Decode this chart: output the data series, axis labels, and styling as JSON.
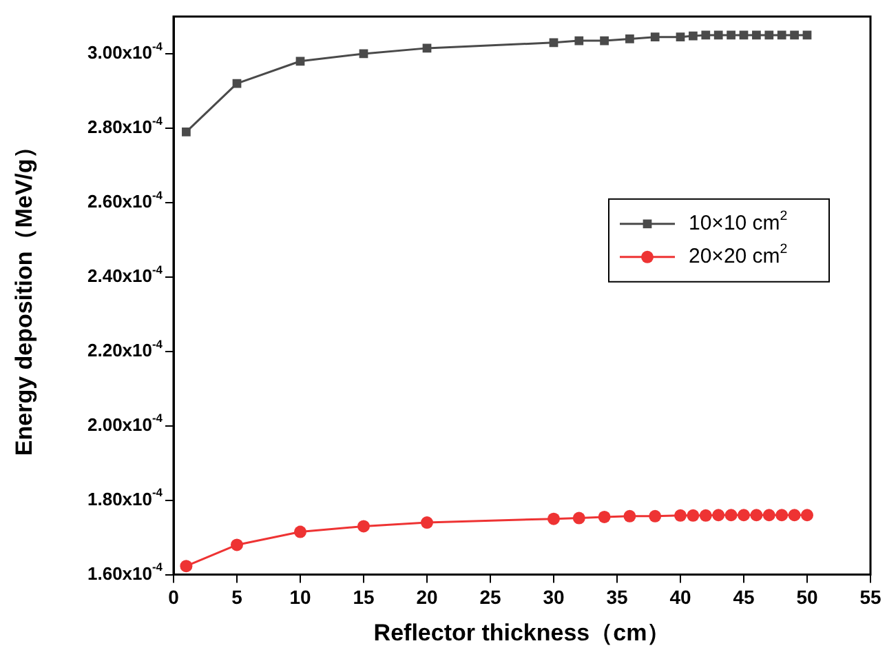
{
  "chart_data": {
    "type": "line",
    "xlabel": "Reflector thickness（cm）",
    "ylabel": "Energy deposition（MeV/g）",
    "x": [
      1,
      5,
      10,
      15,
      20,
      30,
      32,
      34,
      36,
      38,
      40,
      41,
      42,
      43,
      44,
      45,
      46,
      47,
      48,
      49,
      50
    ],
    "series": [
      {
        "name": "10×10 cm$^{2}$",
        "color": "#4a4a4a",
        "marker": "square",
        "values": [
          0.000279,
          0.000292,
          0.000298,
          0.0003,
          0.0003015,
          0.000303,
          0.0003035,
          0.0003035,
          0.000304,
          0.0003045,
          0.0003045,
          0.0003048,
          0.000305,
          0.000305,
          0.000305,
          0.000305,
          0.000305,
          0.000305,
          0.000305,
          0.000305,
          0.000305
        ]
      },
      {
        "name": "20×20 cm$^{2}$",
        "color": "#ee3333",
        "marker": "circle",
        "values": [
          0.0001623,
          0.000168,
          0.0001715,
          0.000173,
          0.000174,
          0.000175,
          0.0001752,
          0.0001755,
          0.0001757,
          0.0001757,
          0.0001759,
          0.0001759,
          0.0001759,
          0.000176,
          0.000176,
          0.000176,
          0.000176,
          0.000176,
          0.000176,
          0.000176,
          0.000176
        ]
      }
    ],
    "xlim": [
      0,
      55
    ],
    "xticks": [
      0,
      5,
      10,
      15,
      20,
      25,
      30,
      35,
      40,
      45,
      50,
      55
    ],
    "ylim": [
      0.00016,
      0.00031
    ],
    "yticks": [
      {
        "value": 0.00016,
        "label": "1.60x10$^{-4}$"
      },
      {
        "value": 0.00018,
        "label": "1.80x10$^{-4}$"
      },
      {
        "value": 0.0002,
        "label": "2.00x10$^{-4}$"
      },
      {
        "value": 0.00022,
        "label": "2.20x10$^{-4}$"
      },
      {
        "value": 0.00024,
        "label": "2.40x10$^{-4}$"
      },
      {
        "value": 0.00026,
        "label": "2.60x10$^{-4}$"
      },
      {
        "value": 0.00028,
        "label": "2.80x10$^{-4}$"
      },
      {
        "value": 0.0003,
        "label": "3.00x10$^{-4}$"
      }
    ],
    "grid": false,
    "legend": "center right",
    "line_style": "solid"
  }
}
